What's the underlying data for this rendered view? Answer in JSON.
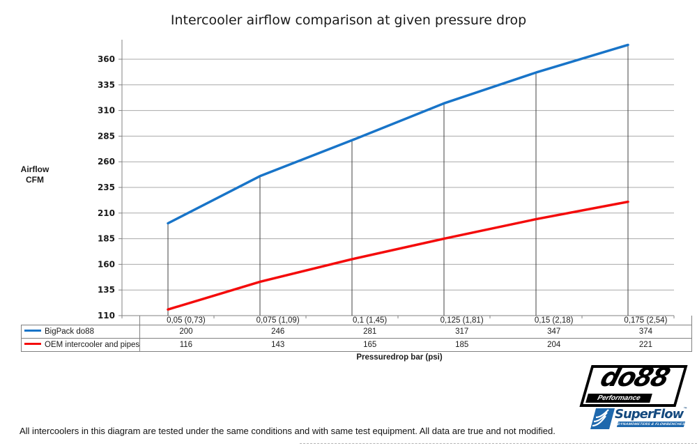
{
  "chart_data": {
    "type": "line",
    "title": "Intercooler airflow comparison at given pressure drop",
    "xlabel": "Pressuredrop bar (psi)",
    "ylabel_lines": [
      "Airflow",
      "CFM"
    ],
    "categories": [
      "0,05 (0,73)",
      "0,075 (1,09)",
      "0,1 (1,45)",
      "0,125 (1,81)",
      "0,15 (2,18)",
      "0,175 (2,54)"
    ],
    "series": [
      {
        "name": "BigPack do88",
        "color": "#1874C8",
        "values": [
          200,
          246,
          281,
          317,
          347,
          374
        ]
      },
      {
        "name": "OEM intercooler and pipes",
        "color": "#F40B0B",
        "values": [
          116,
          143,
          165,
          185,
          204,
          221
        ]
      }
    ],
    "yticks": [
      110,
      135,
      160,
      185,
      210,
      235,
      260,
      285,
      310,
      335,
      360
    ],
    "ylim": [
      110,
      385
    ],
    "grid": true,
    "legend_position": "table-left",
    "drop_lines": "vertical lines from BigPack do88 points to x-axis"
  },
  "colors": {
    "gridline": "#A8A8A8",
    "axis": "#808080",
    "drop_line": "#404040",
    "table_border": "#808080"
  },
  "footer": {
    "text": "All intercoolers in this diagram are tested under the same conditions and with same test equipment. All data are true and not modified."
  },
  "logos": {
    "do88": {
      "main": "do88",
      "sub": "Performance"
    },
    "superflow": {
      "main": "SuperFlow",
      "tm": "™",
      "sub": "DYNAMOMETERS & FLOWBENCHES"
    }
  }
}
